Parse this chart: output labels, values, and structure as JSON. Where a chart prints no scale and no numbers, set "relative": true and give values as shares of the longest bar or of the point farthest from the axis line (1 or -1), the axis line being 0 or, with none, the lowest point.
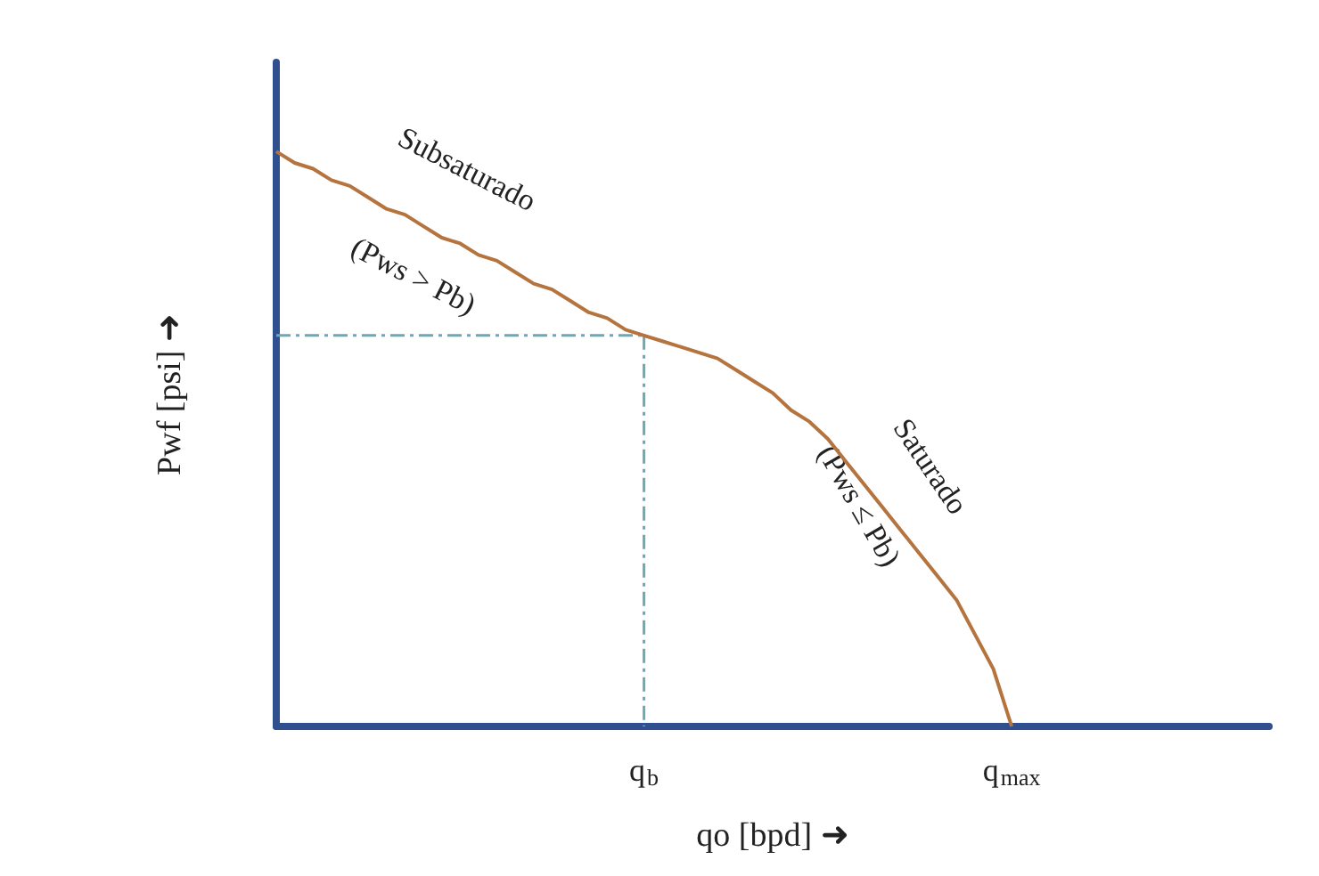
{
  "chart_data": {
    "type": "line",
    "relative": true,
    "xlabel": "qo [bpd] ➜",
    "ylabel": "Pwf [psi] ➜",
    "categories": [
      null,
      null,
      null,
      null,
      null,
      null,
      null,
      null,
      null,
      null,
      null,
      null,
      null,
      null,
      null,
      null,
      null,
      null,
      null,
      null,
      "q$_{b}$",
      null,
      null,
      null,
      null,
      null,
      null,
      null,
      null,
      null,
      null,
      null,
      null,
      null,
      null,
      null,
      null,
      null,
      null,
      null,
      "q$_{max}$",
      null,
      null,
      null,
      null,
      null,
      null,
      null,
      null,
      null,
      null,
      null,
      null,
      null,
      null
    ],
    "annotations": [
      "Subsaturado",
      "(Pws > Pb)",
      "Saturado",
      "(Pws ≤ Pb)"
    ],
    "marker": "none",
    "series": [
      {
        "color": "#b5733e",
        "line_style": "solid",
        "values": [
          1,
          0.98,
          0.97,
          0.95,
          0.94,
          0.92,
          0.9,
          0.89,
          0.87,
          0.85,
          0.84,
          0.82,
          0.81,
          0.79,
          0.77,
          0.76,
          0.74,
          0.72,
          0.71,
          0.69,
          0.68,
          0.67,
          0.66,
          0.65,
          0.64,
          0.62,
          0.6,
          0.58,
          0.55,
          0.53,
          0.5,
          0.46,
          0.42,
          0.38,
          0.34,
          0.3,
          0.26,
          0.22,
          0.16,
          0.1,
          0,
          null,
          null,
          null,
          null,
          null,
          null,
          null,
          null,
          null,
          null,
          null,
          null,
          null,
          null
        ]
      },
      {
        "color": "#6aa9b8",
        "line_style": "dashed",
        "values": [
          0.68,
          0.68,
          0.68,
          0.68,
          0.68,
          0.68,
          0.68,
          0.68,
          0.68,
          0.68,
          0.68,
          0.68,
          0.68,
          0.68,
          0.68,
          0.68,
          0.68,
          0.68,
          0.68,
          0.68,
          0.68,
          null,
          null,
          null,
          null,
          null,
          null,
          null,
          null,
          null,
          null,
          null,
          null,
          null,
          null,
          null,
          null,
          null,
          null,
          null,
          null,
          null,
          null,
          null,
          null,
          null,
          null,
          null,
          null,
          null,
          null,
          null,
          null,
          null,
          null
        ]
      },
      {
        "color": "#6aa9b8",
        "line_style": "dashed",
        "x": [
          "q$_{b}$",
          "q$_{b}$"
        ],
        "values": [
          0.68,
          0
        ]
      }
    ]
  }
}
